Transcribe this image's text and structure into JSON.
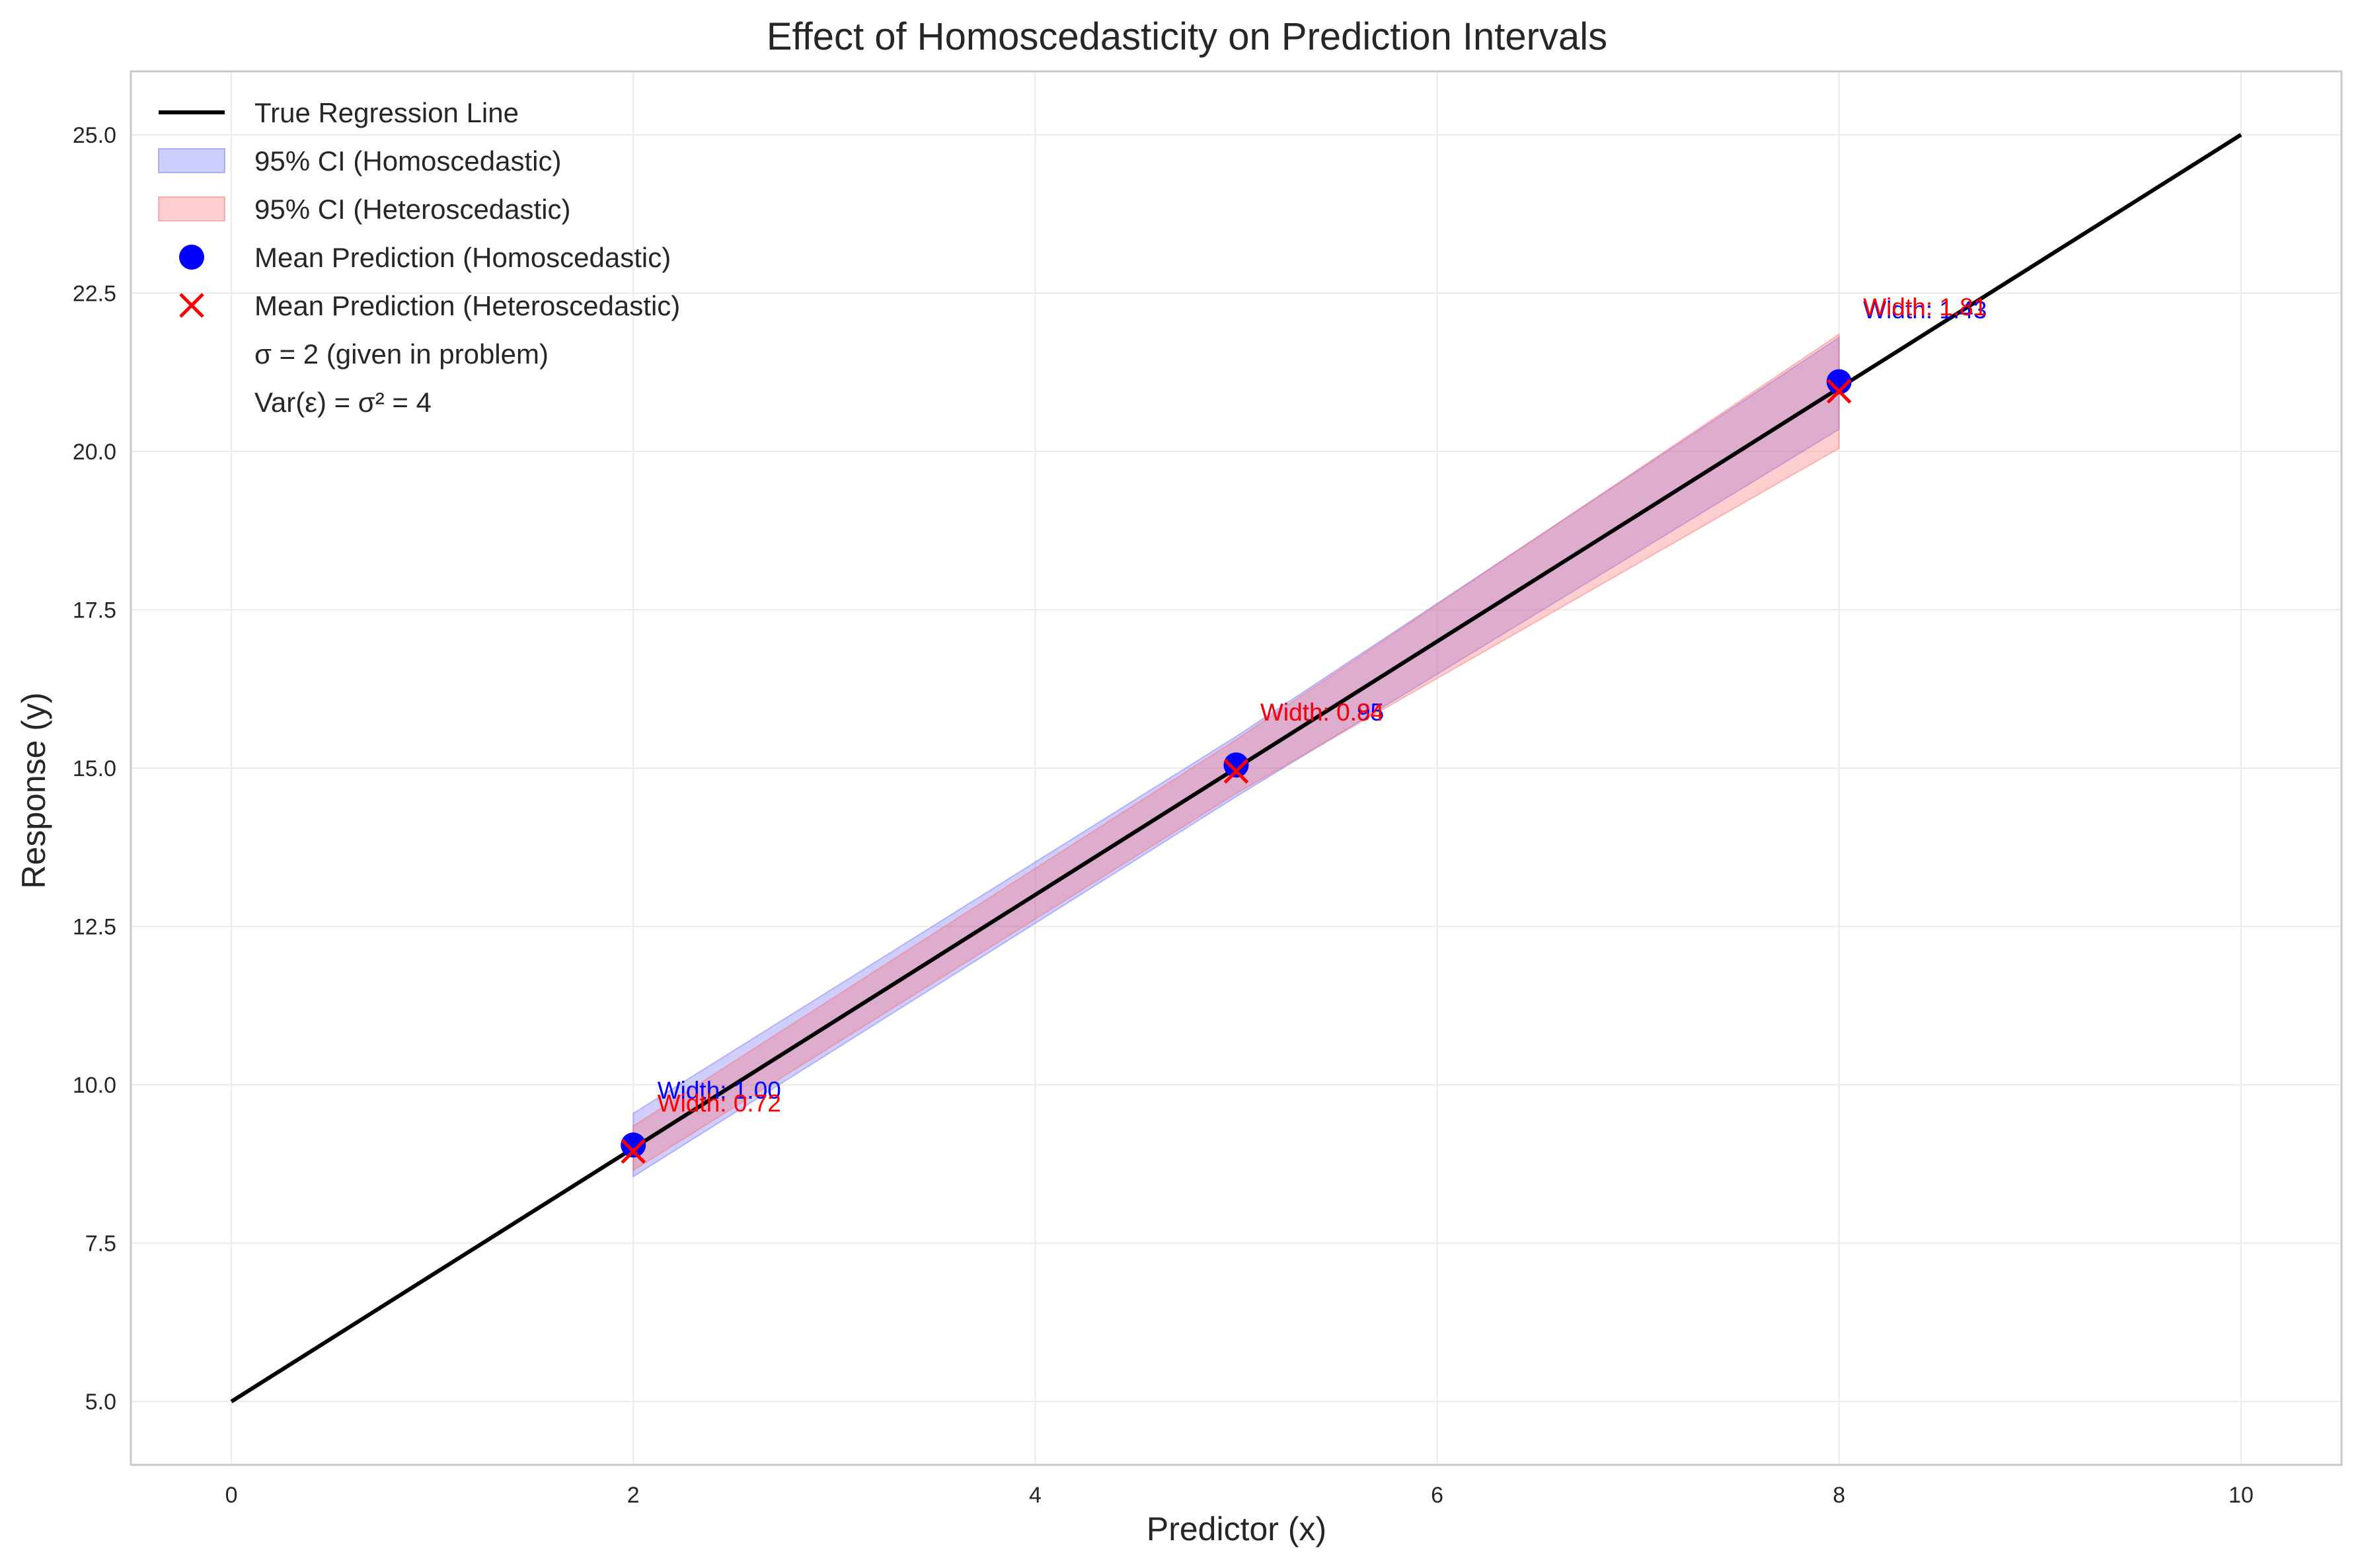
{
  "chart_data": {
    "type": "line",
    "title": "Effect of Homoscedasticity on Prediction Intervals",
    "xlabel": "Predictor (x)",
    "ylabel": "Response (y)",
    "xlim": [
      -0.5,
      10.5
    ],
    "ylim": [
      4.0,
      26.0
    ],
    "x_ticks": [
      0,
      2,
      4,
      6,
      8,
      10
    ],
    "x_tick_labels": [
      "0",
      "2",
      "4",
      "6",
      "8",
      "10"
    ],
    "y_ticks": [
      5.0,
      7.5,
      10.0,
      12.5,
      15.0,
      17.5,
      20.0,
      22.5,
      25.0
    ],
    "y_tick_labels": [
      "5.0",
      "7.5",
      "10.0",
      "12.5",
      "15.0",
      "17.5",
      "20.0",
      "22.5",
      "25.0"
    ],
    "grid": true,
    "legend_position": "top-left",
    "colors": {
      "line": "#000000",
      "homo_fill": "#6666ff",
      "hetero_fill": "#ff6666",
      "homo_marker": "#0000ff",
      "hetero_marker": "#ff0000",
      "grid": "#ebebeb",
      "spine": "#c8c8c8"
    },
    "series": [
      {
        "name": "True Regression Line",
        "kind": "line",
        "x": [
          0,
          10
        ],
        "y": [
          5.0,
          25.0
        ]
      },
      {
        "name": "95% CI (Homoscedastic)",
        "kind": "band",
        "x": [
          2,
          5,
          8
        ],
        "lower": [
          8.55,
          14.55,
          20.35
        ],
        "upper": [
          9.55,
          15.5,
          21.8
        ]
      },
      {
        "name": "95% CI (Heteroscedastic)",
        "kind": "band",
        "x": [
          2,
          5,
          8
        ],
        "lower": [
          8.65,
          14.6,
          20.05
        ],
        "upper": [
          9.35,
          15.45,
          21.85
        ]
      },
      {
        "name": "Mean Prediction (Homoscedastic)",
        "kind": "scatter",
        "marker": "circle",
        "x": [
          2,
          5,
          8
        ],
        "y": [
          9.05,
          15.05,
          21.1
        ]
      },
      {
        "name": "Mean Prediction (Heteroscedastic)",
        "kind": "scatter",
        "marker": "x",
        "x": [
          2,
          5,
          8
        ],
        "y": [
          8.95,
          14.95,
          20.95
        ]
      }
    ],
    "legend_extra": [
      "σ = 2 (given in problem)",
      "Var(ε) = σ² = 4"
    ],
    "annotations": [
      {
        "text": "Width: 1.00",
        "x": 2.12,
        "y": 9.78,
        "series": "homo"
      },
      {
        "text": "Width: 0.72",
        "x": 2.12,
        "y": 9.58,
        "series": "hetero"
      },
      {
        "text": "Width: 0.95",
        "x": 5.12,
        "y": 15.75,
        "series": "homo"
      },
      {
        "text": "Width: 0.84",
        "x": 5.12,
        "y": 15.75,
        "series": "hetero"
      },
      {
        "text": "Width: 1.43",
        "x": 8.12,
        "y": 22.1,
        "series": "homo"
      },
      {
        "text": "Width: 1.81",
        "x": 8.12,
        "y": 22.15,
        "series": "hetero"
      }
    ]
  }
}
